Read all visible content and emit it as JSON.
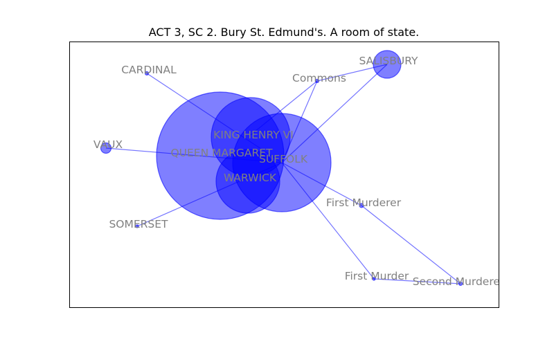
{
  "title": "ACT 3, SC 2. Bury St. Edmund's. A room of state.",
  "colors": {
    "node": "#0000ff",
    "label": "#808080",
    "frame": "#000000"
  },
  "nodes": {
    "queen_margaret": {
      "label": "QUEEN MARGARET"
    },
    "king_henry_vi": {
      "label": "KING HENRY VI"
    },
    "suffolk": {
      "label": "SUFFOLK"
    },
    "warwick": {
      "label": "WARWICK"
    },
    "salisbury": {
      "label": "SALISBURY"
    },
    "commons": {
      "label": "Commons"
    },
    "cardinal": {
      "label": "CARDINAL"
    },
    "vaux": {
      "label": "VAUX"
    },
    "somerset": {
      "label": "SOMERSET"
    },
    "first_murderer": {
      "label": "First Murderer"
    },
    "first_murder": {
      "label": "First Murder"
    },
    "second_murderer": {
      "label": "Second Murderer"
    }
  }
}
